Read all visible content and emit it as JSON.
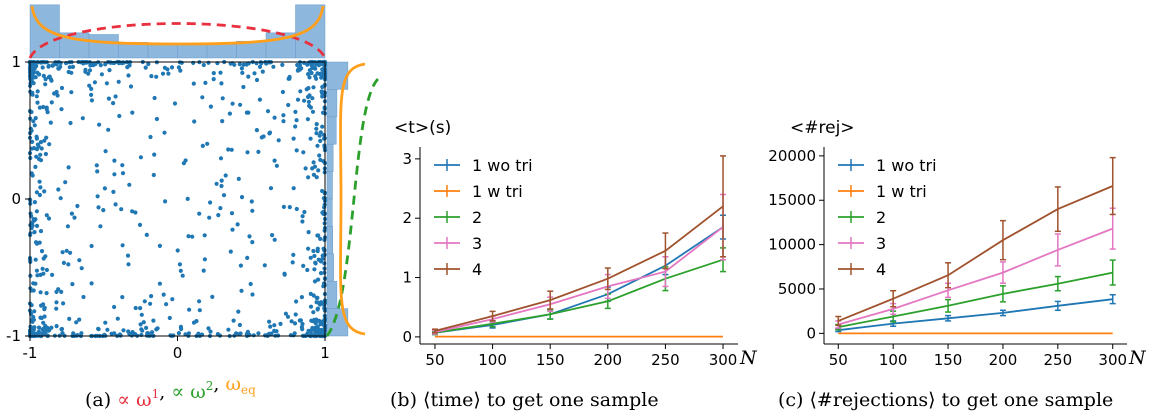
{
  "chart_data": [
    {
      "id": "a",
      "type": "scatter",
      "caption": {
        "label": "(a)",
        "parts": [
          {
            "text": "∝ ω",
            "sup": "1",
            "color": "#e8303e"
          },
          {
            "text": ", ",
            "color": "#000000"
          },
          {
            "text": "∝ ω",
            "sup": "2",
            "color": "#2ca02c"
          },
          {
            "text": ", ",
            "color": "#000000"
          },
          {
            "text": "ω",
            "sub": "eq",
            "color": "#ff9f1c"
          }
        ]
      },
      "xlim": [
        -1,
        1
      ],
      "ylim": [
        -1,
        1
      ],
      "x_ticks": [
        "-1",
        "0",
        "1"
      ],
      "y_ticks": [
        "-1",
        "0",
        "1"
      ],
      "point_color": "#1f77b4",
      "n_points": 1000,
      "edge_concentration": 0.3,
      "marginal_hist_top": [
        0.95,
        0.45,
        0.42,
        0.28,
        0.25,
        0.24,
        0.26,
        0.3,
        0.45,
        0.95
      ],
      "marginal_hist_right": [
        0.95,
        0.45,
        0.42,
        0.28,
        0.25,
        0.24,
        0.26,
        0.3,
        0.45,
        0.95
      ],
      "hist_color": "#8db7dc",
      "curves": [
        {
          "name": "∝ ω¹",
          "color": "#e8303e",
          "style": "dashed",
          "where": "top"
        },
        {
          "name": "∝ ω²",
          "color": "#2ca02c",
          "style": "dashed",
          "where": "right"
        },
        {
          "name": "ω_eq",
          "color": "#ff9f1c",
          "style": "solid",
          "where": "both"
        }
      ]
    },
    {
      "id": "b",
      "type": "line",
      "ylabel": "<t>(s)",
      "xlabel": "N",
      "caption": {
        "label": "(b)",
        "text": "⟨time⟩ to get one sample"
      },
      "x": [
        50,
        100,
        150,
        200,
        250,
        300
      ],
      "xlim": [
        37,
        313
      ],
      "ylim": [
        -0.12,
        3.2
      ],
      "x_ticks": [
        50,
        100,
        150,
        200,
        250,
        300
      ],
      "y_ticks": [
        0,
        1,
        2,
        3
      ],
      "legend_position": "upper-left",
      "series": [
        {
          "name": "1 wo tri",
          "color": "#1f77b4",
          "values": [
            0.07,
            0.2,
            0.38,
            0.72,
            1.2,
            1.85
          ],
          "errors": [
            0.03,
            0.05,
            0.08,
            0.12,
            0.15,
            0.2
          ]
        },
        {
          "name": "1 w tri",
          "color": "#ff7f0e",
          "values": [
            0.005,
            0.005,
            0.005,
            0.005,
            0.005,
            0.005
          ],
          "errors": [
            0,
            0,
            0,
            0,
            0,
            0
          ]
        },
        {
          "name": "2",
          "color": "#2ca02c",
          "values": [
            0.07,
            0.22,
            0.38,
            0.6,
            0.98,
            1.3
          ],
          "errors": [
            0.03,
            0.05,
            0.08,
            0.12,
            0.2,
            0.2
          ]
        },
        {
          "name": "3",
          "color": "#e377c2",
          "values": [
            0.08,
            0.3,
            0.55,
            0.85,
            1.1,
            1.85
          ],
          "errors": [
            0.03,
            0.05,
            0.12,
            0.2,
            0.25,
            0.55
          ]
        },
        {
          "name": "4",
          "color": "#a0522d",
          "values": [
            0.1,
            0.35,
            0.62,
            0.98,
            1.45,
            2.2
          ],
          "errors": [
            0.03,
            0.08,
            0.15,
            0.18,
            0.3,
            0.85
          ]
        }
      ]
    },
    {
      "id": "c",
      "type": "line",
      "ylabel": "<#rej>",
      "xlabel": "N",
      "caption": {
        "label": "(c)",
        "text": "⟨#rejections⟩ to get one sample"
      },
      "x": [
        50,
        100,
        150,
        200,
        250,
        300
      ],
      "xlim": [
        37,
        313
      ],
      "ylim": [
        -1200,
        21000
      ],
      "x_ticks": [
        50,
        100,
        150,
        200,
        250,
        300
      ],
      "y_ticks": [
        0,
        5000,
        10000,
        15000,
        20000
      ],
      "legend_position": "upper-left",
      "series": [
        {
          "name": "1 wo tri",
          "color": "#1f77b4",
          "values": [
            350,
            1100,
            1700,
            2300,
            3100,
            3850
          ],
          "errors": [
            150,
            300,
            300,
            300,
            500,
            500
          ]
        },
        {
          "name": "1 w tri",
          "color": "#ff7f0e",
          "values": [
            0,
            0,
            0,
            0,
            0,
            0
          ],
          "errors": [
            0,
            0,
            0,
            0,
            0,
            0
          ]
        },
        {
          "name": "2",
          "color": "#2ca02c",
          "values": [
            700,
            1900,
            3100,
            4450,
            5600,
            6850
          ],
          "errors": [
            300,
            600,
            700,
            900,
            800,
            1400
          ]
        },
        {
          "name": "3",
          "color": "#e377c2",
          "values": [
            1000,
            2750,
            4850,
            6850,
            9400,
            11800
          ],
          "errors": [
            400,
            600,
            800,
            1200,
            1800,
            2300
          ]
        },
        {
          "name": "4",
          "color": "#a0522d",
          "values": [
            1400,
            3900,
            6550,
            10500,
            14000,
            16600
          ],
          "errors": [
            500,
            900,
            1400,
            2200,
            2500,
            3200
          ]
        }
      ]
    }
  ]
}
